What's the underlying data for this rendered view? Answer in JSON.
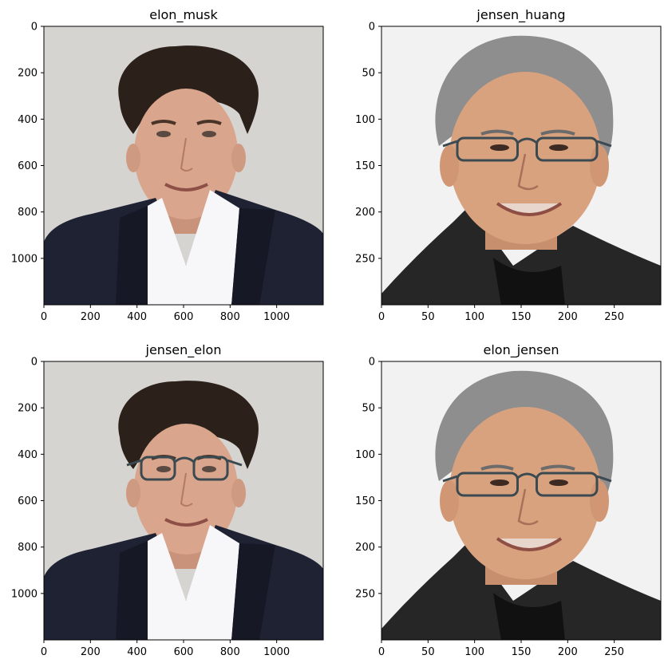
{
  "figure": {
    "panels": [
      {
        "title": "elon_musk",
        "xticks": [
          0,
          200,
          400,
          600,
          800,
          1000
        ],
        "yticks": [
          0,
          200,
          400,
          600,
          800,
          1000
        ],
        "xlim": [
          0,
          1200
        ],
        "ylim": [
          1200,
          0
        ],
        "subject": "elon",
        "glasses": false,
        "background_color": "#d6d4d1"
      },
      {
        "title": "jensen_huang",
        "xticks": [
          0,
          50,
          100,
          150,
          200,
          250
        ],
        "yticks": [
          0,
          50,
          100,
          150,
          200,
          250
        ],
        "xlim": [
          0,
          300
        ],
        "ylim": [
          300,
          0
        ],
        "subject": "jensen",
        "glasses": true,
        "background_color": "#f2f2f2"
      },
      {
        "title": "jensen_elon",
        "xticks": [
          0,
          200,
          400,
          600,
          800,
          1000
        ],
        "yticks": [
          0,
          200,
          400,
          600,
          800,
          1000
        ],
        "xlim": [
          0,
          1200
        ],
        "ylim": [
          1200,
          0
        ],
        "subject": "elon",
        "glasses": true,
        "background_color": "#d6d4d1"
      },
      {
        "title": "elon_jensen",
        "xticks": [
          0,
          50,
          100,
          150,
          200,
          250
        ],
        "yticks": [
          0,
          50,
          100,
          150,
          200,
          250
        ],
        "xlim": [
          0,
          300
        ],
        "ylim": [
          300,
          0
        ],
        "subject": "jensen",
        "glasses": true,
        "background_color": "#f2f2f2"
      }
    ]
  },
  "colors": {
    "elon_hair": "#2c211a",
    "elon_skin": "#d9a58d",
    "elon_suit": "#1f2233",
    "elon_shirt": "#f7f7f9",
    "jensen_hair": "#8e8e8e",
    "jensen_skin": "#d9a27f",
    "jensen_jacket": "#262626",
    "glasses_frame": "#3b4a50"
  }
}
